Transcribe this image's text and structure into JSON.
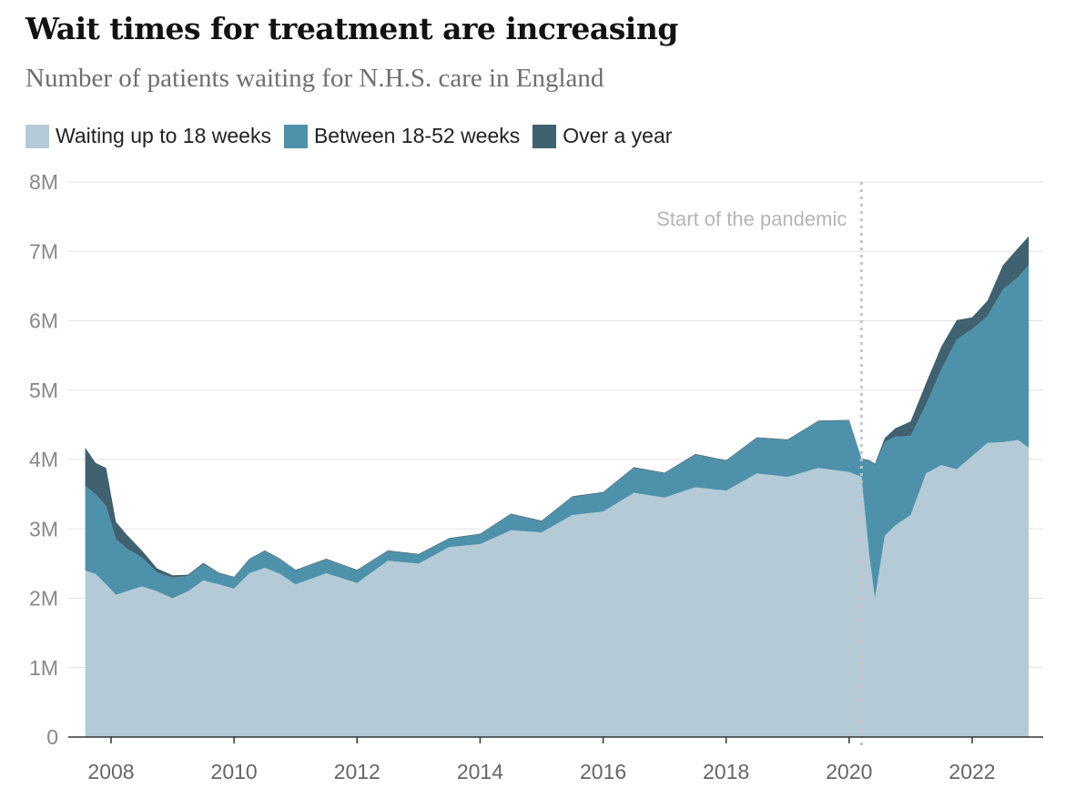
{
  "header": {
    "title": "Wait times for treatment are increasing",
    "subtitle": "Number of patients waiting for N.H.S. care in England"
  },
  "legend": [
    {
      "label": "Waiting up to 18 weeks",
      "color": "#b4cbd7"
    },
    {
      "label": "Between 18-52 weeks",
      "color": "#4e91aa"
    },
    {
      "label": "Over a year",
      "color": "#3f6170"
    }
  ],
  "annotation": {
    "text": "Start of the pandemic",
    "x": 2020.2
  },
  "chart_data": {
    "type": "area",
    "stacked": true,
    "x_unit": "year",
    "y_unit": "patients (millions)",
    "xlim": [
      2007.4,
      2023.2
    ],
    "ylim": [
      0,
      8
    ],
    "grid": true,
    "legend_position": "top",
    "y_ticks": [
      {
        "value": 0,
        "label": "0"
      },
      {
        "value": 1,
        "label": "1M"
      },
      {
        "value": 2,
        "label": "2M"
      },
      {
        "value": 3,
        "label": "3M"
      },
      {
        "value": 4,
        "label": "4M"
      },
      {
        "value": 5,
        "label": "5M"
      },
      {
        "value": 6,
        "label": "6M"
      },
      {
        "value": 7,
        "label": "7M"
      },
      {
        "value": 8,
        "label": "8M"
      }
    ],
    "x_ticks": [
      {
        "value": 2008,
        "label": "2008"
      },
      {
        "value": 2010,
        "label": "2010"
      },
      {
        "value": 2012,
        "label": "2012"
      },
      {
        "value": 2014,
        "label": "2014"
      },
      {
        "value": 2016,
        "label": "2016"
      },
      {
        "value": 2018,
        "label": "2018"
      },
      {
        "value": 2020,
        "label": "2020"
      },
      {
        "value": 2022,
        "label": "2022"
      }
    ],
    "x": [
      2007.58,
      2007.75,
      2007.92,
      2008.08,
      2008.25,
      2008.5,
      2008.75,
      2009.0,
      2009.25,
      2009.5,
      2009.75,
      2010.0,
      2010.25,
      2010.5,
      2010.75,
      2011.0,
      2011.5,
      2012.0,
      2012.5,
      2013.0,
      2013.5,
      2014.0,
      2014.5,
      2015.0,
      2015.5,
      2016.0,
      2016.5,
      2017.0,
      2017.5,
      2018.0,
      2018.5,
      2019.0,
      2019.5,
      2020.0,
      2020.2,
      2020.33,
      2020.42,
      2020.58,
      2020.75,
      2021.0,
      2021.25,
      2021.5,
      2021.75,
      2022.0,
      2022.25,
      2022.5,
      2022.75,
      2022.92
    ],
    "series": [
      {
        "name": "Waiting up to 18 weeks",
        "color": "#b4cbd7",
        "values": [
          2.4,
          2.35,
          2.2,
          2.05,
          2.1,
          2.17,
          2.1,
          2.0,
          2.1,
          2.26,
          2.2,
          2.14,
          2.36,
          2.44,
          2.35,
          2.2,
          2.36,
          2.22,
          2.54,
          2.5,
          2.74,
          2.78,
          2.98,
          2.95,
          3.2,
          3.25,
          3.52,
          3.45,
          3.6,
          3.55,
          3.8,
          3.75,
          3.88,
          3.82,
          3.75,
          2.6,
          2.0,
          2.9,
          3.05,
          3.2,
          3.8,
          3.92,
          3.86,
          4.05,
          4.24,
          4.25,
          4.28,
          4.17
        ]
      },
      {
        "name": "Between 18-52 weeks",
        "color": "#4e91aa",
        "values": [
          1.22,
          1.15,
          1.13,
          0.8,
          0.62,
          0.42,
          0.27,
          0.3,
          0.22,
          0.23,
          0.16,
          0.16,
          0.2,
          0.24,
          0.21,
          0.2,
          0.2,
          0.18,
          0.14,
          0.13,
          0.12,
          0.14,
          0.23,
          0.16,
          0.26,
          0.27,
          0.36,
          0.35,
          0.47,
          0.43,
          0.51,
          0.53,
          0.67,
          0.74,
          0.27,
          1.38,
          1.92,
          1.35,
          1.28,
          1.14,
          0.99,
          1.38,
          1.87,
          1.83,
          1.83,
          2.2,
          2.35,
          2.63
        ]
      },
      {
        "name": "Over a year",
        "color": "#3f6170",
        "values": [
          0.55,
          0.45,
          0.55,
          0.25,
          0.2,
          0.1,
          0.06,
          0.03,
          0.02,
          0.02,
          0.01,
          0.01,
          0.01,
          0.01,
          0.01,
          0.01,
          0.01,
          0.01,
          0.01,
          0.01,
          0.01,
          0.01,
          0.01,
          0.01,
          0.01,
          0.01,
          0.01,
          0.01,
          0.01,
          0.01,
          0.01,
          0.01,
          0.01,
          0.01,
          0.0,
          0.01,
          0.02,
          0.06,
          0.12,
          0.21,
          0.31,
          0.33,
          0.28,
          0.17,
          0.22,
          0.35,
          0.42,
          0.42
        ]
      }
    ]
  }
}
